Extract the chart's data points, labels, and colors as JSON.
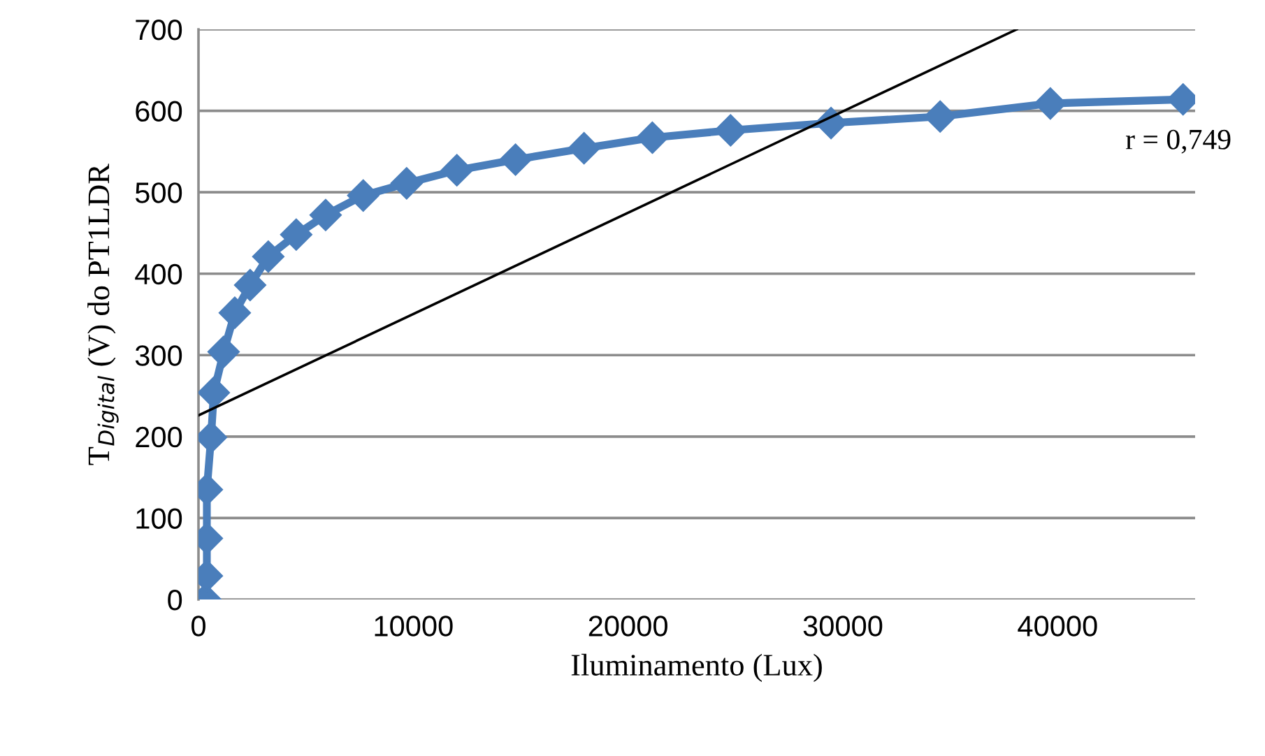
{
  "chart_data": {
    "type": "line",
    "xlabel": "Iluminamento (Lux)",
    "ylabel": "T$_{Digital}$ (V) do PT1LDR",
    "series": [
      {
        "color": "#4a7ebb",
        "marker": "diamond",
        "x": [
          325,
          390,
          390,
          390,
          585,
          715,
          1170,
          1690,
          2405,
          3250,
          4550,
          5920,
          7670,
          9690,
          12030,
          14760,
          17950,
          21130,
          24770,
          29450,
          34530,
          39660,
          45840
        ],
        "values": [
          0,
          29,
          75,
          135,
          199,
          254,
          304,
          352,
          386,
          421,
          448,
          472,
          496,
          511,
          527,
          540,
          554,
          567,
          576,
          585,
          593,
          609,
          614
        ]
      },
      {
        "color": "#000000",
        "marker": "none",
        "x": [
          0,
          38100
        ],
        "values": [
          226,
          700
        ]
      }
    ],
    "annotations": [
      "r = 0,749"
    ],
    "xlim": [
      0,
      46400
    ],
    "xticks": [
      0,
      10000,
      20000,
      30000,
      40000
    ],
    "ylim": [
      0,
      700
    ],
    "yticks": [
      0,
      100,
      200,
      300,
      400,
      500,
      600,
      700
    ],
    "grid": "y",
    "legend": false
  }
}
